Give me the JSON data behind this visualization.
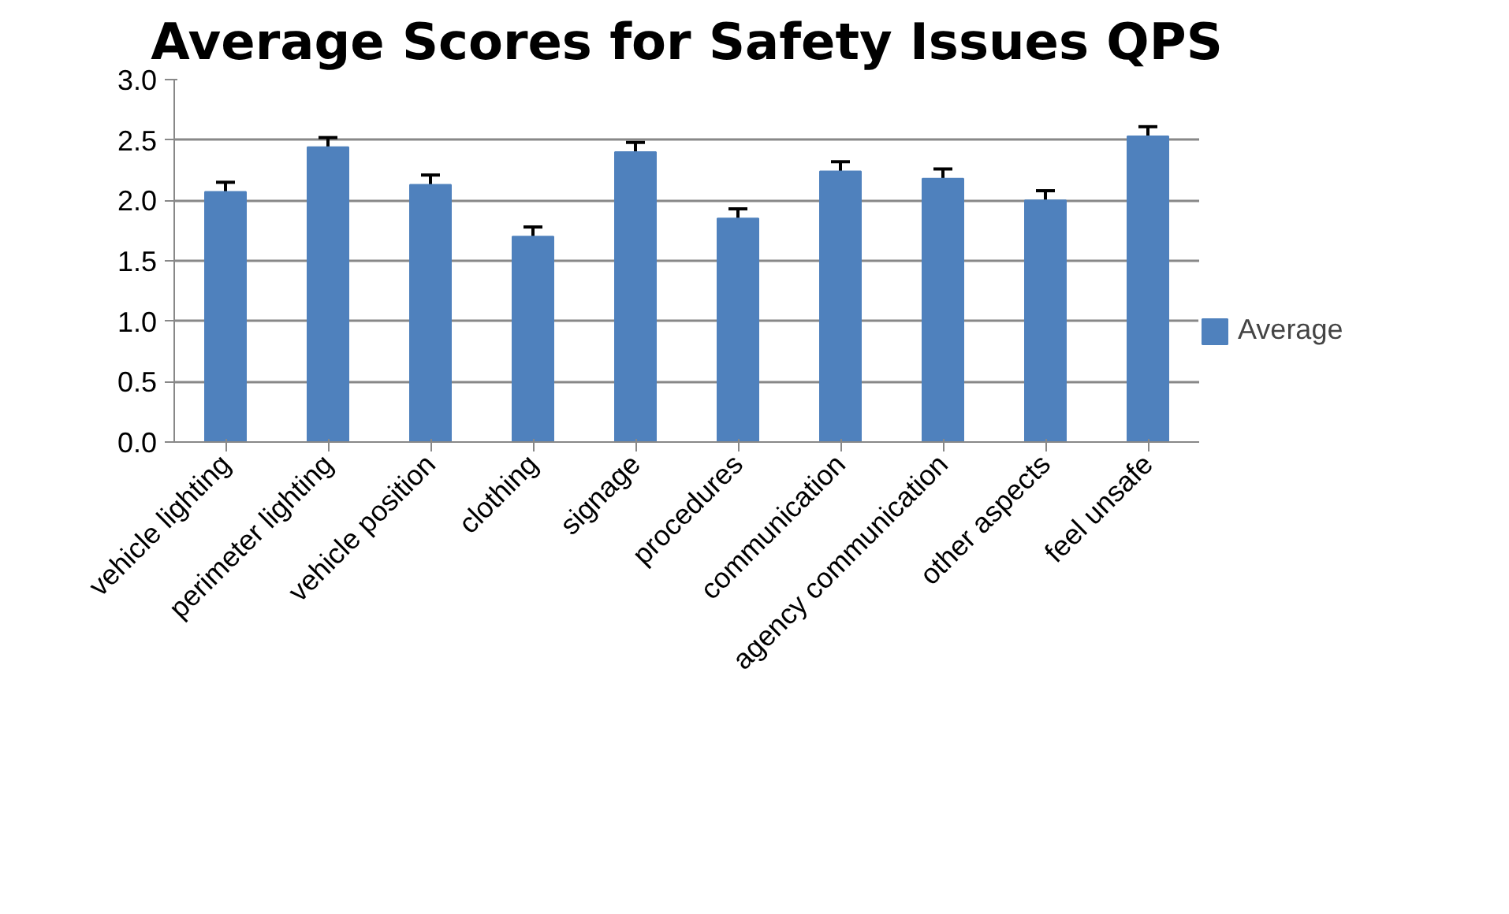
{
  "chart_data": {
    "type": "bar",
    "title": "Average Scores for Safety Issues QPS",
    "categories": [
      "vehicle lighting",
      "perimeter lighting",
      "vehicle position",
      "clothing",
      "signage",
      "procedures",
      "communication",
      "agency communication",
      "other aspects",
      "feel unsafe"
    ],
    "series": [
      {
        "name": "Average",
        "color": "#4f81bd",
        "values": [
          2.07,
          2.44,
          2.13,
          1.7,
          2.4,
          1.85,
          2.24,
          2.18,
          2.0,
          2.53
        ],
        "errors": [
          0.08,
          0.08,
          0.08,
          0.08,
          0.08,
          0.08,
          0.08,
          0.08,
          0.08,
          0.08
        ]
      }
    ],
    "ylim": [
      0,
      3
    ],
    "yticks": [
      {
        "value": 0,
        "label": "0.0"
      },
      {
        "value": 0.5,
        "label": "0.5"
      },
      {
        "value": 1,
        "label": "1.0"
      },
      {
        "value": 1.5,
        "label": "1.5"
      },
      {
        "value": 2,
        "label": "2.0"
      },
      {
        "value": 2.5,
        "label": "2.5"
      },
      {
        "value": 3,
        "label": "3.0"
      }
    ],
    "grid": "y",
    "legend": "right"
  }
}
